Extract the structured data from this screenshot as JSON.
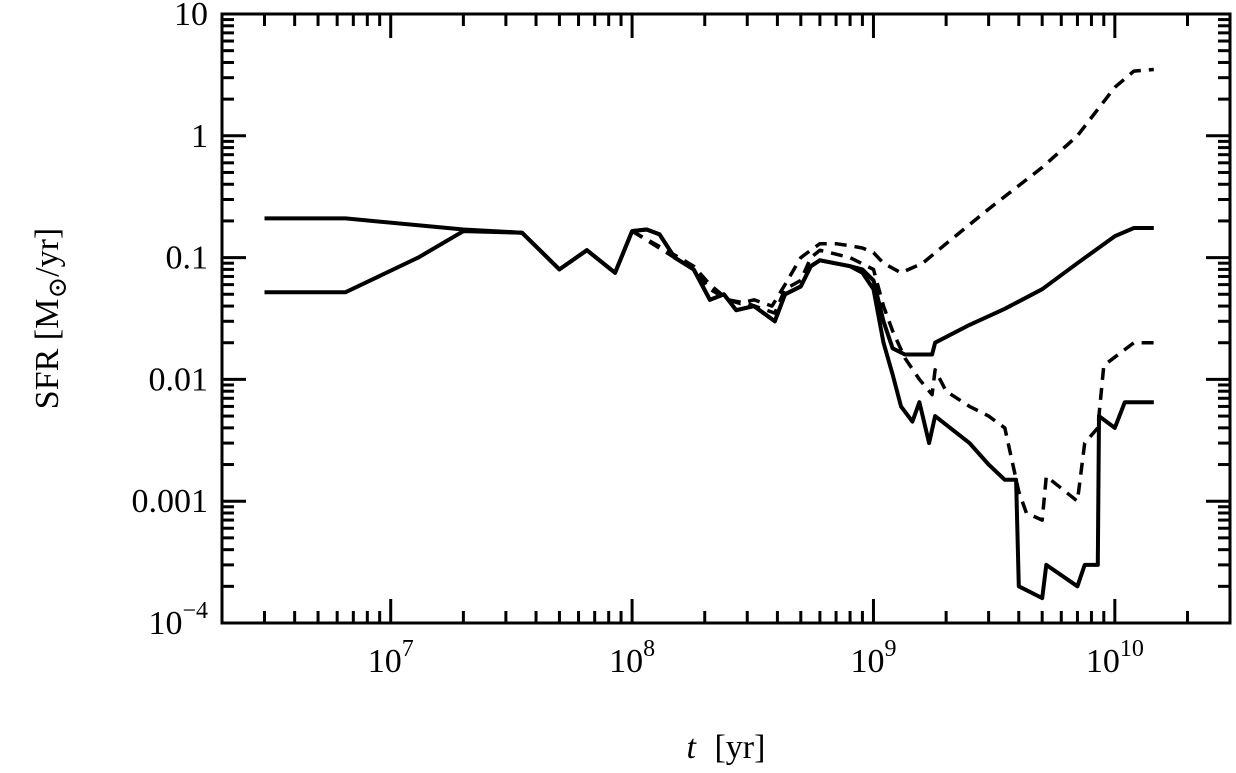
{
  "chart_data": {
    "type": "line",
    "x_scale": "log",
    "y_scale": "log",
    "xlabel": {
      "var": "t",
      "unit": "[yr]"
    },
    "ylabel": {
      "main": "SFR [M",
      "sub": "⊙",
      "tail": "/yr]"
    },
    "xlim": [
      2000000.0,
      30000000000.0
    ],
    "ylim": [
      0.0001,
      10
    ],
    "x_ticks": [
      {
        "value": 10000000.0,
        "base": "10",
        "exp": "7"
      },
      {
        "value": 100000000.0,
        "base": "10",
        "exp": "8"
      },
      {
        "value": 1000000000.0,
        "base": "10",
        "exp": "9"
      },
      {
        "value": 10000000000.0,
        "base": "10",
        "exp": "10"
      }
    ],
    "y_ticks": [
      {
        "value": 10,
        "label": "10"
      },
      {
        "value": 1,
        "label": "1"
      },
      {
        "value": 0.1,
        "label": "0.1"
      },
      {
        "value": 0.01,
        "label": "0.01"
      },
      {
        "value": 0.001,
        "label": "0.001"
      },
      {
        "value": 0.0001,
        "label": "",
        "base": "10",
        "exp": "−4"
      }
    ],
    "grid": false,
    "legend": "none",
    "series": [
      {
        "style": "solid",
        "points": [
          [
            3000000.0,
            0.21
          ],
          [
            6500000.0,
            0.21
          ],
          [
            20000000.0,
            0.17
          ],
          [
            35000000.0,
            0.16
          ],
          [
            50000000.0,
            0.08
          ],
          [
            65000000.0,
            0.115
          ],
          [
            85000000.0,
            0.075
          ],
          [
            100000000.0,
            0.165
          ],
          [
            115000000.0,
            0.17
          ],
          [
            130000000.0,
            0.155
          ],
          [
            150000000.0,
            0.1
          ],
          [
            180000000.0,
            0.08
          ],
          [
            210000000.0,
            0.045
          ],
          [
            240000000.0,
            0.05
          ],
          [
            270000000.0,
            0.037
          ],
          [
            320000000.0,
            0.04
          ],
          [
            390000000.0,
            0.03
          ],
          [
            430000000.0,
            0.05
          ],
          [
            500000000.0,
            0.058
          ],
          [
            550000000.0,
            0.085
          ],
          [
            600000000.0,
            0.095
          ],
          [
            800000000.0,
            0.085
          ],
          [
            900000000.0,
            0.08
          ],
          [
            1000000000.0,
            0.065
          ],
          [
            1100000000.0,
            0.03
          ],
          [
            1200000000.0,
            0.018
          ],
          [
            1350000000.0,
            0.016
          ],
          [
            1550000000.0,
            0.016
          ],
          [
            1750000000.0,
            0.016
          ],
          [
            1800000000.0,
            0.02
          ],
          [
            2500000000.0,
            0.028
          ],
          [
            3500000000.0,
            0.038
          ],
          [
            5000000000.0,
            0.055
          ],
          [
            7000000000.0,
            0.09
          ],
          [
            10000000000.0,
            0.15
          ],
          [
            12000000000.0,
            0.175
          ],
          [
            14500000000.0,
            0.175
          ]
        ]
      },
      {
        "style": "solid",
        "points": [
          [
            3000000.0,
            0.052
          ],
          [
            6500000.0,
            0.052
          ],
          [
            13000000.0,
            0.1
          ],
          [
            20000000.0,
            0.165
          ],
          [
            35000000.0,
            0.16
          ],
          [
            50000000.0,
            0.08
          ],
          [
            65000000.0,
            0.115
          ],
          [
            85000000.0,
            0.075
          ],
          [
            100000000.0,
            0.165
          ],
          [
            115000000.0,
            0.17
          ],
          [
            130000000.0,
            0.155
          ],
          [
            150000000.0,
            0.1
          ],
          [
            180000000.0,
            0.08
          ],
          [
            210000000.0,
            0.045
          ],
          [
            240000000.0,
            0.05
          ],
          [
            270000000.0,
            0.037
          ],
          [
            320000000.0,
            0.04
          ],
          [
            390000000.0,
            0.03
          ],
          [
            430000000.0,
            0.05
          ],
          [
            500000000.0,
            0.058
          ],
          [
            550000000.0,
            0.085
          ],
          [
            600000000.0,
            0.095
          ],
          [
            800000000.0,
            0.085
          ],
          [
            900000000.0,
            0.075
          ],
          [
            1000000000.0,
            0.055
          ],
          [
            1100000000.0,
            0.02
          ],
          [
            1200000000.0,
            0.011
          ],
          [
            1300000000.0,
            0.006
          ],
          [
            1450000000.0,
            0.0045
          ],
          [
            1550000000.0,
            0.0065
          ],
          [
            1700000000.0,
            0.003
          ],
          [
            1800000000.0,
            0.005
          ],
          [
            2500000000.0,
            0.003
          ],
          [
            3000000000.0,
            0.002
          ],
          [
            3500000000.0,
            0.0015
          ],
          [
            3900000000.0,
            0.0015
          ],
          [
            4000000000.0,
            0.0002
          ],
          [
            5000000000.0,
            0.00016
          ],
          [
            5200000000.0,
            0.0003
          ],
          [
            7000000000.0,
            0.0002
          ],
          [
            7500000000.0,
            0.0003
          ],
          [
            8500000000.0,
            0.0003
          ],
          [
            8600000000.0,
            0.005
          ],
          [
            10000000000.0,
            0.004
          ],
          [
            11000000000.0,
            0.0065
          ],
          [
            14500000000.0,
            0.0065
          ]
        ]
      },
      {
        "style": "dashed",
        "points": [
          [
            100000000.0,
            0.165
          ],
          [
            150000000.0,
            0.105
          ],
          [
            180000000.0,
            0.085
          ],
          [
            210000000.0,
            0.06
          ],
          [
            250000000.0,
            0.045
          ],
          [
            280000000.0,
            0.042
          ],
          [
            320000000.0,
            0.045
          ],
          [
            380000000.0,
            0.04
          ],
          [
            430000000.0,
            0.06
          ],
          [
            500000000.0,
            0.1
          ],
          [
            550000000.0,
            0.115
          ],
          [
            600000000.0,
            0.13
          ],
          [
            700000000.0,
            0.13
          ],
          [
            800000000.0,
            0.125
          ],
          [
            900000000.0,
            0.12
          ],
          [
            1000000000.0,
            0.11
          ],
          [
            1100000000.0,
            0.09
          ],
          [
            1300000000.0,
            0.075
          ],
          [
            1600000000.0,
            0.09
          ],
          [
            2000000000.0,
            0.13
          ],
          [
            3000000000.0,
            0.25
          ],
          [
            5000000000.0,
            0.55
          ],
          [
            7000000000.0,
            1.0
          ],
          [
            10000000000.0,
            2.5
          ],
          [
            12000000000.0,
            3.4
          ],
          [
            14500000000.0,
            3.5
          ]
        ]
      },
      {
        "style": "dashed",
        "points": [
          [
            100000000.0,
            0.165
          ],
          [
            150000000.0,
            0.1
          ],
          [
            180000000.0,
            0.08
          ],
          [
            210000000.0,
            0.055
          ],
          [
            250000000.0,
            0.045
          ],
          [
            300000000.0,
            0.042
          ],
          [
            390000000.0,
            0.035
          ],
          [
            430000000.0,
            0.055
          ],
          [
            500000000.0,
            0.065
          ],
          [
            550000000.0,
            0.1
          ],
          [
            600000000.0,
            0.115
          ],
          [
            800000000.0,
            0.1
          ],
          [
            1000000000.0,
            0.08
          ],
          [
            1100000000.0,
            0.04
          ],
          [
            1200000000.0,
            0.025
          ],
          [
            1350000000.0,
            0.015
          ],
          [
            1550000000.0,
            0.01
          ],
          [
            1750000000.0,
            0.0075
          ],
          [
            1800000000.0,
            0.012
          ],
          [
            2000000000.0,
            0.008
          ],
          [
            2500000000.0,
            0.006
          ],
          [
            3000000000.0,
            0.005
          ],
          [
            3500000000.0,
            0.004
          ],
          [
            4000000000.0,
            0.0012
          ],
          [
            4300000000.0,
            0.0008
          ],
          [
            5000000000.0,
            0.0007
          ],
          [
            5200000000.0,
            0.0016
          ],
          [
            7000000000.0,
            0.001
          ],
          [
            7500000000.0,
            0.003
          ],
          [
            8500000000.0,
            0.004
          ],
          [
            9000000000.0,
            0.013
          ],
          [
            12000000000.0,
            0.02
          ],
          [
            14500000000.0,
            0.02
          ]
        ]
      }
    ]
  }
}
